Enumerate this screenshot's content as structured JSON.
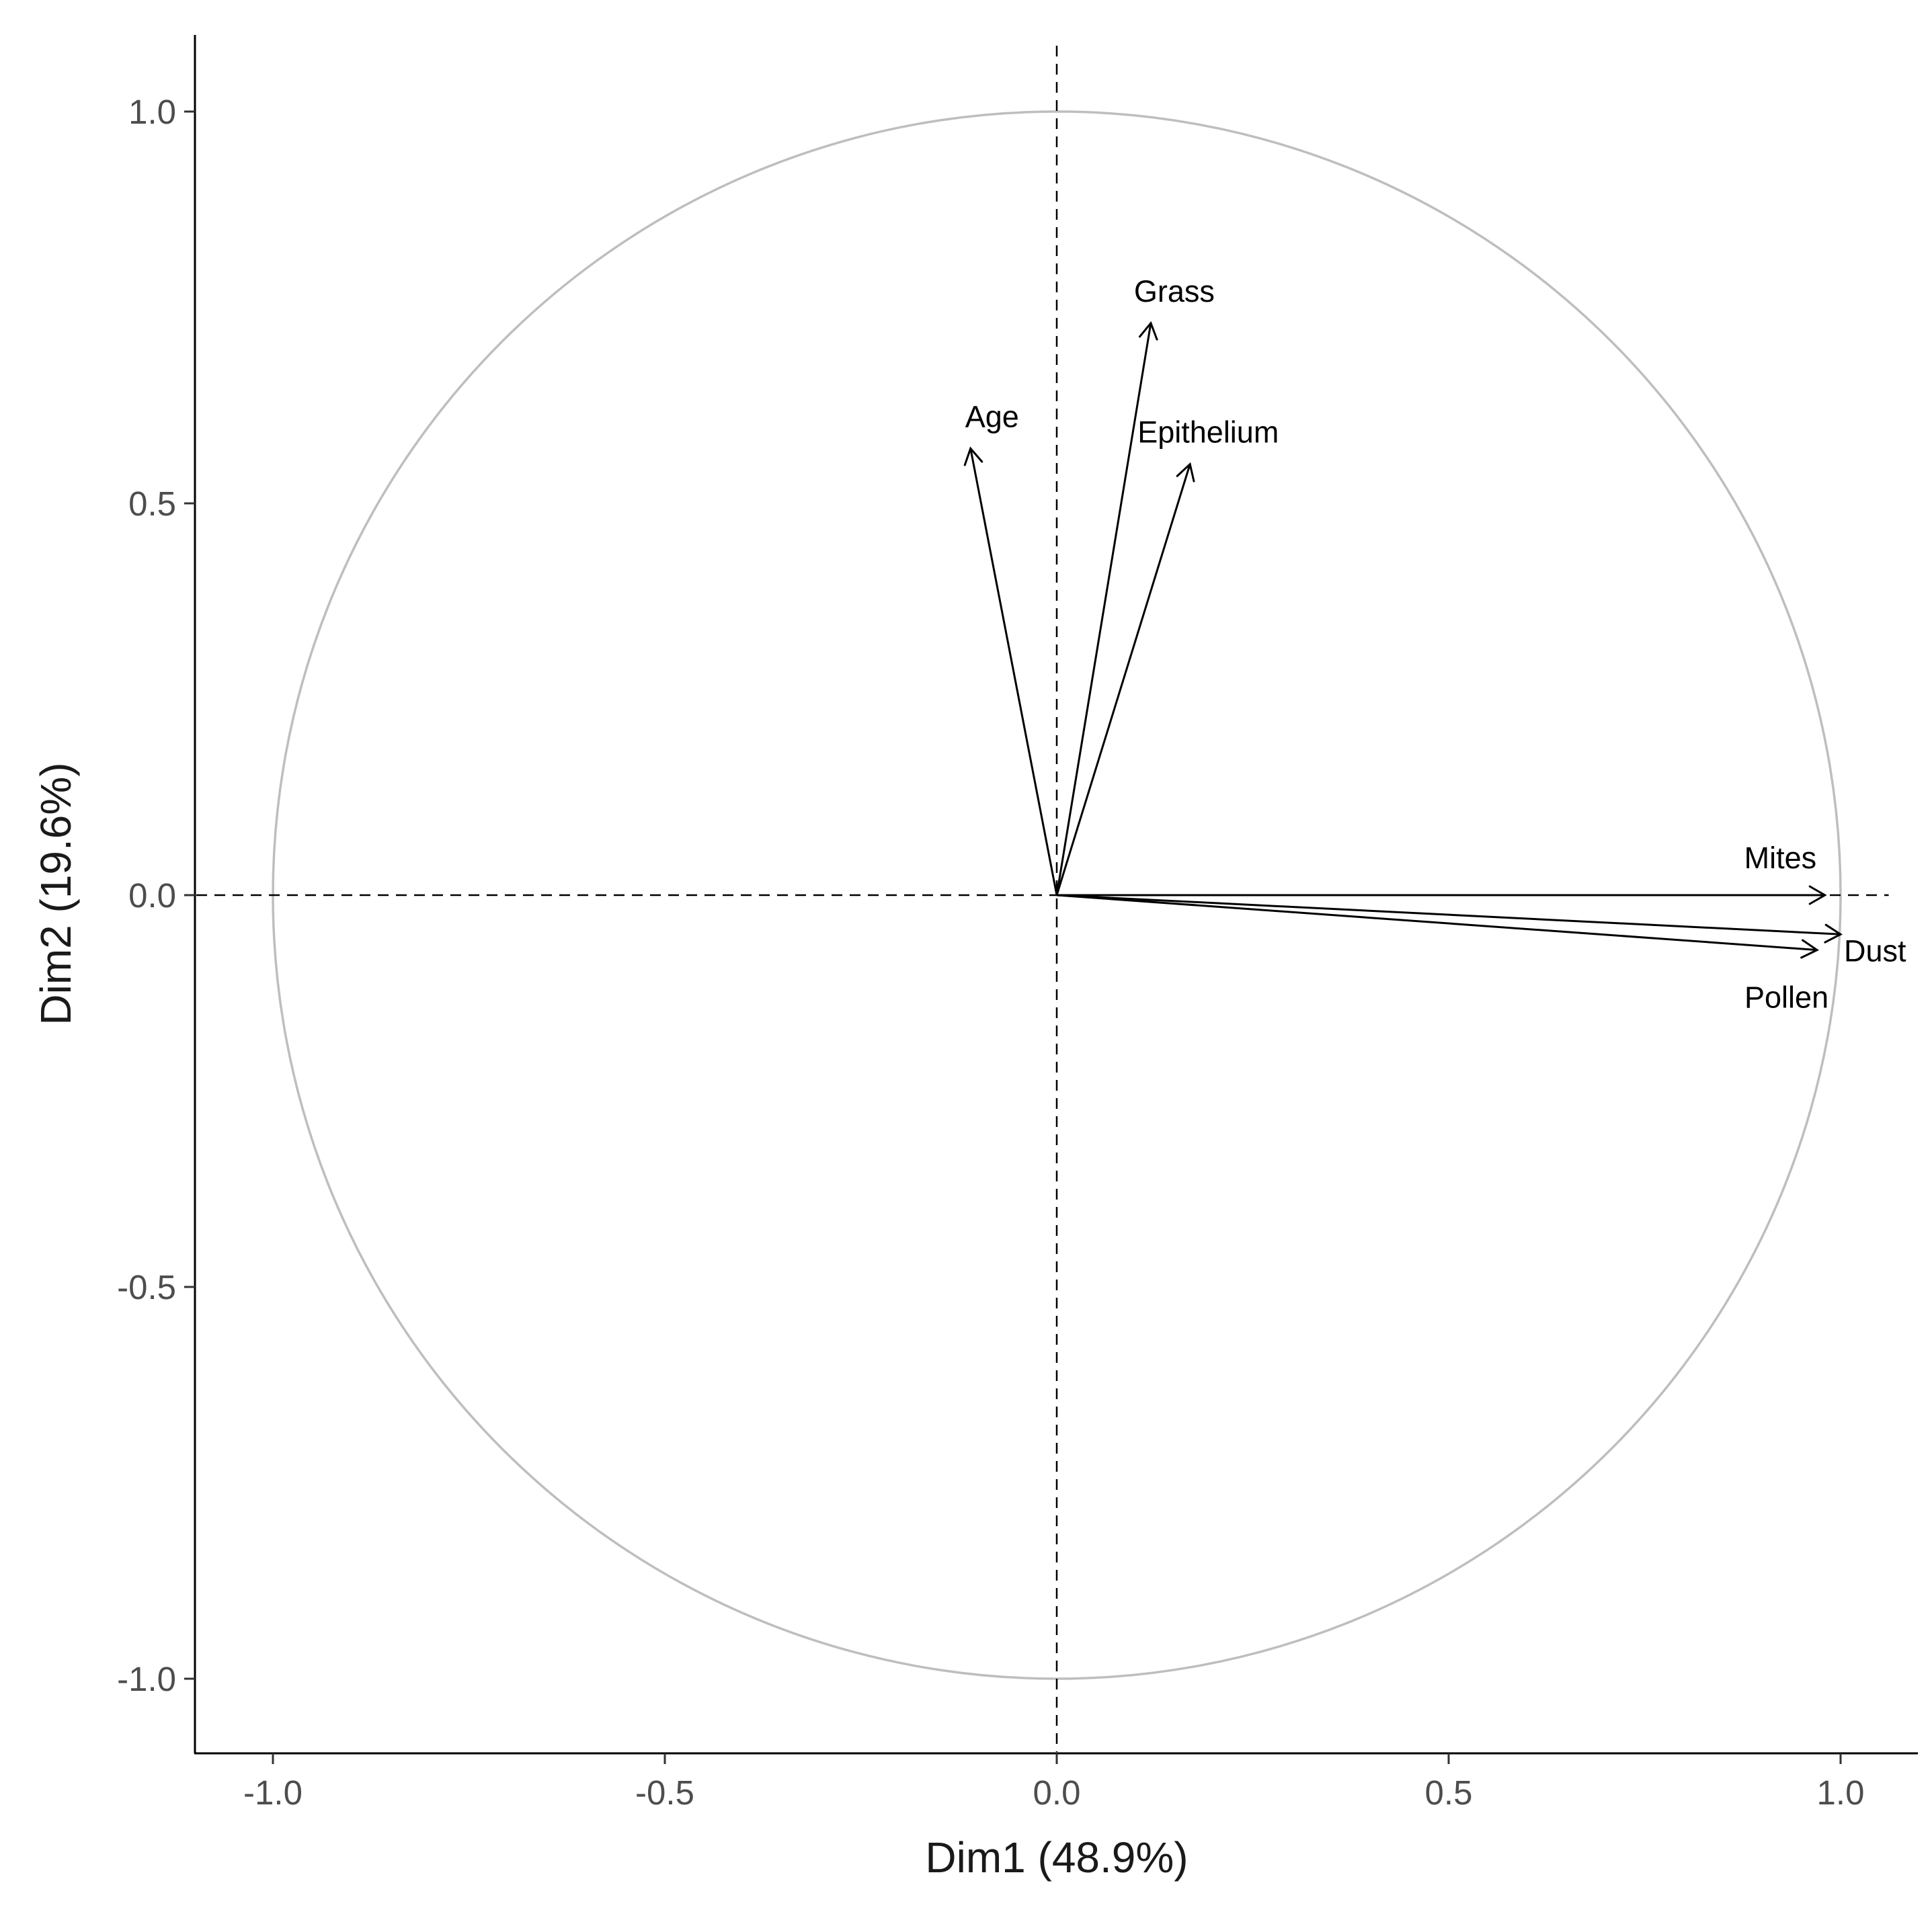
{
  "chart_data": {
    "type": "scatter",
    "subtype": "pca-correlation-circle",
    "title": "",
    "xlabel": "Dim1 (48.9%)",
    "ylabel": "Dim2 (19.6%)",
    "xlim": [
      -1.1,
      1.1
    ],
    "ylim": [
      -1.1,
      1.1
    ],
    "x_ticks": [
      -1.0,
      -0.5,
      0.0,
      0.5,
      1.0
    ],
    "y_ticks": [
      -1.0,
      -0.5,
      0.0,
      0.5,
      1.0
    ],
    "x_tick_labels": [
      "-1.0",
      "-0.5",
      "0.0",
      "0.5",
      "1.0"
    ],
    "y_tick_labels": [
      "-1.0",
      "-0.5",
      "0.0",
      "0.5",
      "1.0"
    ],
    "grid": false,
    "unit_circle": true,
    "reference_lines": {
      "x": 0,
      "y": 0,
      "style": "dashed"
    },
    "colors": {
      "arrows": "#000000",
      "circle": "#bebebe",
      "axis": "#000000",
      "tick_text": "#4d4d4d",
      "title_text": "#1a1a1a"
    },
    "variables": [
      {
        "name": "Grass",
        "x": 0.12,
        "y": 0.73
      },
      {
        "name": "Age",
        "x": -0.11,
        "y": 0.57
      },
      {
        "name": "Epithelium",
        "x": 0.17,
        "y": 0.55
      },
      {
        "name": "Mites",
        "x": 0.98,
        "y": 0.0
      },
      {
        "name": "Dust",
        "x": 1.0,
        "y": -0.05
      },
      {
        "name": "Pollen",
        "x": 0.97,
        "y": -0.07
      }
    ]
  }
}
